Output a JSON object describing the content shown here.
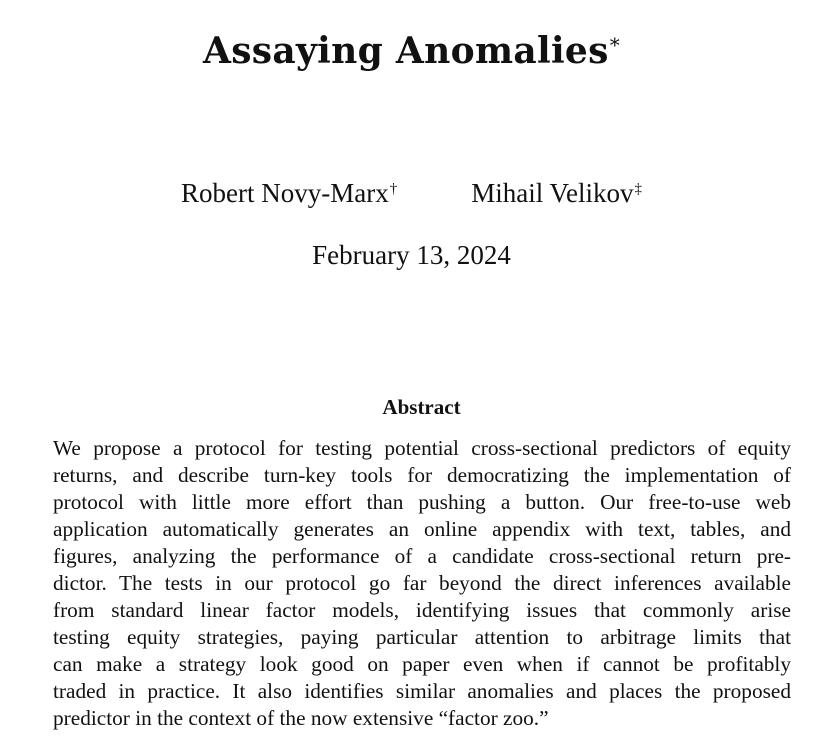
{
  "paper": {
    "title": "Assaying Anomalies",
    "title_mark": "*",
    "authors": [
      {
        "name": "Robert Novy-Marx",
        "mark": "†"
      },
      {
        "name": "Mihail Velikov",
        "mark": "‡"
      }
    ],
    "date": "February 13, 2024",
    "abstract_heading": "Abstract",
    "abstract_lines": [
      "We propose a protocol for testing potential cross-sectional predictors of equity",
      "returns, and describe turn-key tools for democratizing the implementation of",
      "protocol with little more effort than pushing a button.  Our free-to-use web",
      "application automatically generates an online appendix with text, tables, and",
      "figures, analyzing the performance of a candidate cross-sectional return pre-",
      "dictor. The tests in our protocol go far beyond the direct inferences available",
      "from standard linear factor models, identifying issues that commonly arise",
      "testing equity strategies, paying particular attention to arbitrage limits that",
      "can make a strategy look good on paper even when if cannot be profitably",
      "traded in practice. It also identifies similar anomalies and places the proposed",
      "predictor in the context of the now extensive “factor zoo.”"
    ]
  }
}
